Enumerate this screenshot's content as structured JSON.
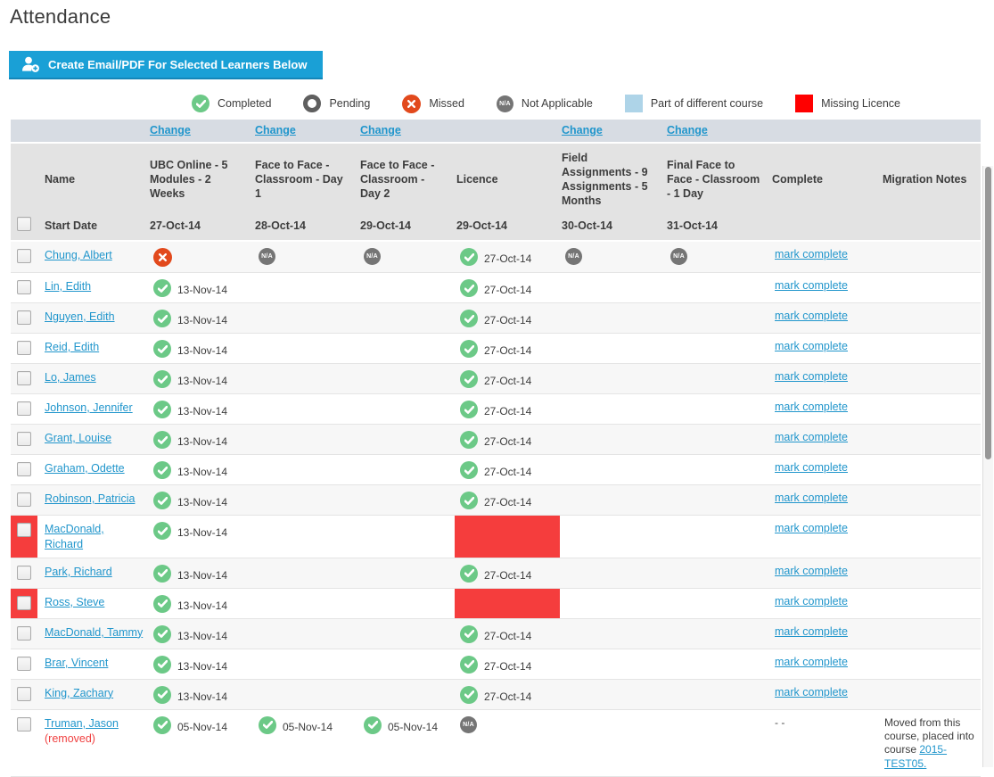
{
  "page": {
    "title": "Attendance"
  },
  "toolbar": {
    "create_button_label": "Create Email/PDF For Selected Learners Below"
  },
  "legend": {
    "na_text": "N/A",
    "items": [
      {
        "icon": "completed",
        "label": "Completed"
      },
      {
        "icon": "pending",
        "label": "Pending"
      },
      {
        "icon": "missed",
        "label": "Missed"
      },
      {
        "icon": "na",
        "label": "Not Applicable"
      },
      {
        "icon": "different-course",
        "label": "Part of different course"
      },
      {
        "icon": "missing-licence",
        "label": "Missing Licence"
      }
    ]
  },
  "colors": {
    "accent_blue": "#1aa0d6",
    "link_blue": "#2196cc",
    "status_green": "#6cc987",
    "status_missed_red": "#e2491c",
    "status_na_gray": "#757575",
    "missing_licence_cell_red": "#f53d3d",
    "legend_red": "#ff0000",
    "legend_light_blue": "#aed4e8",
    "header_gray": "#e3e3e3",
    "change_row_gray_blue": "#d7dce3"
  },
  "table": {
    "change_link_label": "Change",
    "columns": [
      {
        "key": "cb",
        "label": "",
        "start": ""
      },
      {
        "key": "name",
        "label": "Name",
        "start": "Start Date"
      },
      {
        "key": "course",
        "label": "UBC Online - 5 Modules - 2 Weeks",
        "start": "27-Oct-14",
        "change": true
      },
      {
        "key": "course",
        "label": "Face to Face - Classroom - Day 1",
        "start": "28-Oct-14",
        "change": true
      },
      {
        "key": "course",
        "label": "Face to Face - Classroom - Day 2",
        "start": "29-Oct-14",
        "change": true
      },
      {
        "key": "course",
        "label": "Licence",
        "start": "29-Oct-14",
        "change": false
      },
      {
        "key": "course",
        "label": "Field Assignments - 9 Assignments - 5 Months",
        "start": "30-Oct-14",
        "change": true
      },
      {
        "key": "course",
        "label": "Final Face to Face - Classroom - 1 Day",
        "start": "31-Oct-14",
        "change": true
      },
      {
        "key": "complete",
        "label": "Complete",
        "start": ""
      },
      {
        "key": "notes",
        "label": "Migration Notes",
        "start": ""
      }
    ],
    "rows": [
      {
        "name": "Chung, Albert",
        "flagged": false,
        "cells": [
          {
            "s": "missed"
          },
          {
            "s": "na"
          },
          {
            "s": "na"
          },
          {
            "s": "completed",
            "date": "27-Oct-14"
          },
          {
            "s": "na"
          },
          {
            "s": "na"
          }
        ],
        "complete": "mark complete",
        "complete_is_link": true,
        "notes": null
      },
      {
        "name": "Lin, Edith",
        "flagged": false,
        "cells": [
          {
            "s": "completed",
            "date": "13-Nov-14"
          },
          {},
          {},
          {
            "s": "completed",
            "date": "27-Oct-14"
          },
          {},
          {}
        ],
        "complete": "mark complete",
        "complete_is_link": true,
        "notes": null
      },
      {
        "name": "Nguyen, Edith",
        "flagged": false,
        "cells": [
          {
            "s": "completed",
            "date": "13-Nov-14"
          },
          {},
          {},
          {
            "s": "completed",
            "date": "27-Oct-14"
          },
          {},
          {}
        ],
        "complete": "mark complete",
        "complete_is_link": true,
        "notes": null
      },
      {
        "name": "Reid, Edith",
        "flagged": false,
        "cells": [
          {
            "s": "completed",
            "date": "13-Nov-14"
          },
          {},
          {},
          {
            "s": "completed",
            "date": "27-Oct-14"
          },
          {},
          {}
        ],
        "complete": "mark complete",
        "complete_is_link": true,
        "notes": null
      },
      {
        "name": "Lo, James",
        "flagged": false,
        "cells": [
          {
            "s": "completed",
            "date": "13-Nov-14"
          },
          {},
          {},
          {
            "s": "completed",
            "date": "27-Oct-14"
          },
          {},
          {}
        ],
        "complete": "mark complete",
        "complete_is_link": true,
        "notes": null
      },
      {
        "name": "Johnson, Jennifer",
        "flagged": false,
        "cells": [
          {
            "s": "completed",
            "date": "13-Nov-14"
          },
          {},
          {},
          {
            "s": "completed",
            "date": "27-Oct-14"
          },
          {},
          {}
        ],
        "complete": "mark complete",
        "complete_is_link": true,
        "notes": null
      },
      {
        "name": "Grant, Louise",
        "flagged": false,
        "cells": [
          {
            "s": "completed",
            "date": "13-Nov-14"
          },
          {},
          {},
          {
            "s": "completed",
            "date": "27-Oct-14"
          },
          {},
          {}
        ],
        "complete": "mark complete",
        "complete_is_link": true,
        "notes": null
      },
      {
        "name": "Graham, Odette",
        "flagged": false,
        "cells": [
          {
            "s": "completed",
            "date": "13-Nov-14"
          },
          {},
          {},
          {
            "s": "completed",
            "date": "27-Oct-14"
          },
          {},
          {}
        ],
        "complete": "mark complete",
        "complete_is_link": true,
        "notes": null
      },
      {
        "name": "Robinson, Patricia",
        "flagged": false,
        "cells": [
          {
            "s": "completed",
            "date": "13-Nov-14"
          },
          {},
          {},
          {
            "s": "completed",
            "date": "27-Oct-14"
          },
          {},
          {}
        ],
        "complete": "mark complete",
        "complete_is_link": true,
        "notes": null
      },
      {
        "name": "MacDonald, Richard",
        "flagged": true,
        "cells": [
          {
            "s": "completed",
            "date": "13-Nov-14"
          },
          {},
          {},
          {
            "s": "missing"
          },
          {},
          {}
        ],
        "complete": "mark complete",
        "complete_is_link": true,
        "notes": null
      },
      {
        "name": "Park, Richard",
        "flagged": false,
        "cells": [
          {
            "s": "completed",
            "date": "13-Nov-14"
          },
          {},
          {},
          {
            "s": "completed",
            "date": "27-Oct-14"
          },
          {},
          {}
        ],
        "complete": "mark complete",
        "complete_is_link": true,
        "notes": null
      },
      {
        "name": "Ross, Steve",
        "flagged": true,
        "cells": [
          {
            "s": "completed",
            "date": "13-Nov-14"
          },
          {},
          {},
          {
            "s": "missing"
          },
          {},
          {}
        ],
        "complete": "mark complete",
        "complete_is_link": true,
        "notes": null
      },
      {
        "name": "MacDonald, Tammy",
        "flagged": false,
        "cells": [
          {
            "s": "completed",
            "date": "13-Nov-14"
          },
          {},
          {},
          {
            "s": "completed",
            "date": "27-Oct-14"
          },
          {},
          {}
        ],
        "complete": "mark complete",
        "complete_is_link": true,
        "notes": null
      },
      {
        "name": "Brar, Vincent",
        "flagged": false,
        "cells": [
          {
            "s": "completed",
            "date": "13-Nov-14"
          },
          {},
          {},
          {
            "s": "completed",
            "date": "27-Oct-14"
          },
          {},
          {}
        ],
        "complete": "mark complete",
        "complete_is_link": true,
        "notes": null
      },
      {
        "name": "King, Zachary",
        "flagged": false,
        "cells": [
          {
            "s": "completed",
            "date": "13-Nov-14"
          },
          {},
          {},
          {
            "s": "completed",
            "date": "27-Oct-14"
          },
          {},
          {}
        ],
        "complete": "mark complete",
        "complete_is_link": true,
        "notes": null
      },
      {
        "name": "Truman, Jason",
        "flagged": false,
        "removed_label": "(removed)",
        "cells": [
          {
            "s": "completed",
            "date": "05-Nov-14"
          },
          {
            "s": "completed",
            "date": "05-Nov-14"
          },
          {
            "s": "completed",
            "date": "05-Nov-14"
          },
          {
            "s": "na"
          },
          {},
          {}
        ],
        "complete": "- -",
        "complete_is_link": false,
        "notes": {
          "text": "Moved from this course, placed into course ",
          "link_label": "2015-TEST05."
        }
      }
    ]
  }
}
